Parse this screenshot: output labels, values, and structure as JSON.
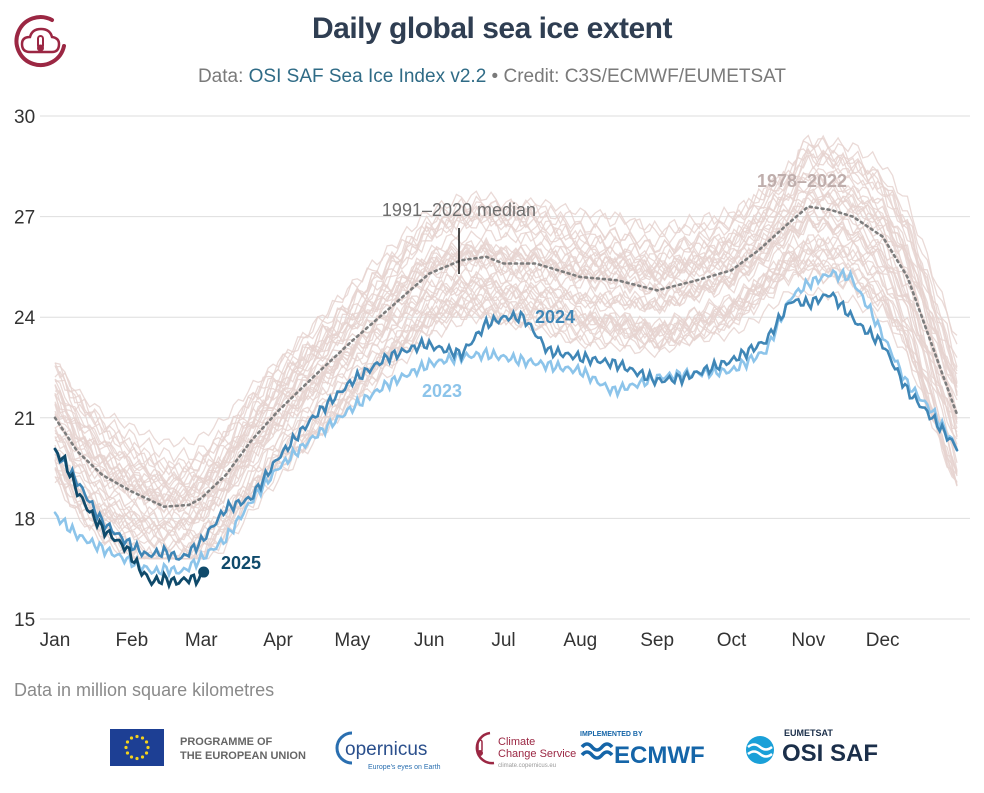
{
  "header": {
    "title": "Daily global sea ice extent",
    "subtitle_prefix": "Data: ",
    "subtitle_source": "OSI SAF Sea Ice Index v2.2",
    "subtitle_credit": " • Credit: C3S/ECMWF/EUMETSAT"
  },
  "footer": {
    "note": "Data in million square kilometres",
    "logos": {
      "eu_line1": "PROGRAMME OF",
      "eu_line2": "THE EUROPEAN UNION",
      "copernicus": "opernicus",
      "copernicus_tag": "Europe's eyes on Earth",
      "c3s_line1": "Climate",
      "c3s_line2": "Change Service",
      "c3s_url": "climate.copernicus.eu",
      "ecmwf_tag": "IMPLEMENTED BY",
      "ecmwf": "ECMWF",
      "osisaf_tag": "EUMETSAT",
      "osisaf": "OSI SAF"
    }
  },
  "colors": {
    "historical": "#e6d3d0",
    "median": "#7d7d7d",
    "y2023": "#8cc4ea",
    "y2024": "#3f86b6",
    "y2025": "#0f4a6b",
    "title": "#2f3e52",
    "c3s_accent": "#9b2743"
  },
  "chart_data": {
    "type": "line",
    "ylim": [
      15,
      30
    ],
    "yticks": [
      15,
      18,
      21,
      24,
      27,
      30
    ],
    "month_labels": [
      "Jan",
      "Feb",
      "Mar",
      "Apr",
      "May",
      "Jun",
      "Jul",
      "Aug",
      "Sep",
      "Oct",
      "Nov",
      "Dec"
    ],
    "grid": true,
    "annotations": {
      "median_label": "1991–2020 median",
      "historical_label": "1978–2022",
      "label_2024": "2024",
      "label_2023": "2023",
      "label_2025": "2025"
    },
    "series": [
      {
        "name": "1991–2020 median",
        "x": [
          1,
          10,
          20,
          32,
          45,
          55,
          60,
          70,
          80,
          91,
          105,
          121,
          135,
          152,
          165,
          175,
          182,
          195,
          213,
          228,
          244,
          260,
          274,
          285,
          297,
          305,
          314,
          323,
          335,
          345,
          365
        ],
        "values": [
          21.0,
          20.0,
          19.3,
          18.8,
          18.35,
          18.4,
          18.6,
          19.3,
          20.3,
          21.2,
          22.2,
          23.3,
          24.2,
          25.3,
          25.7,
          25.8,
          25.6,
          25.6,
          25.2,
          25.1,
          24.8,
          25.1,
          25.4,
          26.0,
          26.8,
          27.3,
          27.2,
          27.0,
          26.4,
          25.2,
          21.1
        ]
      },
      {
        "name": "2023",
        "x": [
          1,
          10,
          20,
          32,
          41,
          46,
          52,
          60,
          70,
          80,
          91,
          105,
          121,
          135,
          152,
          163,
          175,
          190,
          205,
          213,
          226,
          236,
          244,
          255,
          274,
          288,
          298,
          305,
          314,
          322,
          330,
          345,
          355,
          365
        ],
        "values": [
          18.1,
          17.5,
          17.1,
          16.7,
          16.4,
          16.5,
          16.4,
          16.8,
          17.4,
          18.5,
          19.5,
          20.4,
          21.3,
          22.0,
          22.6,
          22.8,
          22.9,
          22.7,
          22.5,
          22.4,
          21.8,
          22.0,
          22.2,
          22.3,
          22.4,
          23.0,
          24.6,
          25.0,
          25.3,
          25.2,
          24.2,
          22.0,
          21.2,
          20.1
        ]
      },
      {
        "name": "2024",
        "x": [
          1,
          10,
          20,
          30,
          38,
          45,
          52,
          60,
          70,
          80,
          91,
          105,
          121,
          135,
          150,
          165,
          175,
          183,
          190,
          200,
          213,
          228,
          244,
          255,
          274,
          288,
          298,
          305,
          314,
          325,
          335,
          345,
          355,
          365
        ],
        "values": [
          20.0,
          19.1,
          17.9,
          17.3,
          16.9,
          17.0,
          16.8,
          17.3,
          18.3,
          18.6,
          19.8,
          21.0,
          22.1,
          22.8,
          23.2,
          22.9,
          23.8,
          24.0,
          24.0,
          23.0,
          22.8,
          22.6,
          22.1,
          22.2,
          22.7,
          23.3,
          24.5,
          24.4,
          24.7,
          23.8,
          23.2,
          21.8,
          21.0,
          20.1
        ]
      },
      {
        "name": "2025",
        "x": [
          1,
          5,
          10,
          15,
          20,
          25,
          30,
          35,
          40,
          45,
          50,
          55,
          60,
          61
        ],
        "values": [
          20.0,
          19.7,
          18.8,
          18.2,
          17.7,
          17.4,
          17.1,
          16.5,
          16.1,
          16.2,
          16.1,
          16.2,
          16.2,
          16.4
        ]
      }
    ]
  }
}
